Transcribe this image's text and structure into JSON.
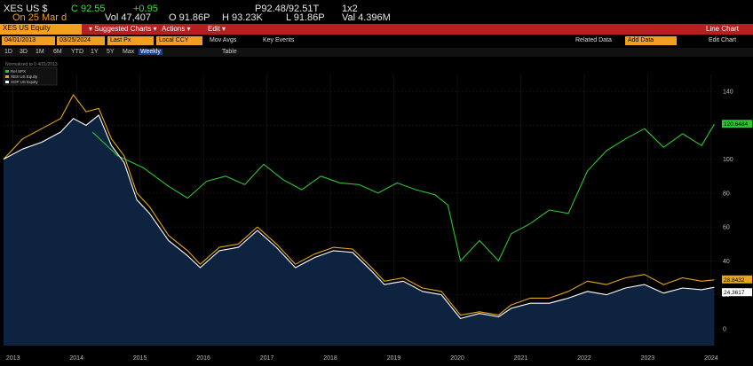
{
  "quote": {
    "ticker": "XES US $",
    "last": "C 92.55",
    "change": "+0.95",
    "bid_ask": "P92.48/92.51T",
    "size": "1x2",
    "date": "On 25 Mar d",
    "volume": "Vol 47,407",
    "open": "O 91.86P",
    "high": "H 93.23K",
    "low": "L 91.86P",
    "value": "Val 4.396M"
  },
  "menubar": {
    "security": "XES US Equity",
    "suggested": "Suggested Charts",
    "actions": "Actions",
    "edit": "Edit",
    "chart_type": "Line Chart"
  },
  "filters": {
    "start_date": "04/01/2013",
    "end_date": "03/25/2024",
    "price": "Last Px",
    "currency": "Local CCY",
    "mov_avgs": "Mov Avgs",
    "key_events": "Key Events",
    "related": "Related Data",
    "add_data": "Add Data",
    "edit_chart": "Edit Chart"
  },
  "periods": [
    "1D",
    "3D",
    "1M",
    "6M",
    "YTD",
    "1Y",
    "5Y",
    "Max",
    "Weekly",
    "Table"
  ],
  "legend_note": "Normalized to 0 4/01/2013",
  "colors": {
    "spx": "#2dc42d",
    "xes": "#e6a817",
    "xop": "#ffffff",
    "area": "#0e2340"
  },
  "chart_data": {
    "type": "line",
    "x_labels": [
      "2013",
      "2014",
      "2015",
      "2016",
      "2017",
      "2018",
      "2019",
      "2020",
      "2021",
      "2022",
      "2023",
      "2024"
    ],
    "ylim": [
      -10,
      150
    ],
    "yticks": [
      0,
      20,
      40,
      60,
      80,
      100,
      120,
      140
    ],
    "series": [
      {
        "name": "Rel SPX",
        "last_label": "120.6484",
        "points": [
          [
            2014.4,
            116
          ],
          [
            2014.8,
            102
          ],
          [
            2015.2,
            95
          ],
          [
            2015.6,
            84
          ],
          [
            2015.9,
            77
          ],
          [
            2016.2,
            87
          ],
          [
            2016.5,
            90
          ],
          [
            2016.8,
            85
          ],
          [
            2017.1,
            97
          ],
          [
            2017.4,
            88
          ],
          [
            2017.7,
            82
          ],
          [
            2018.0,
            90
          ],
          [
            2018.3,
            86
          ],
          [
            2018.6,
            85
          ],
          [
            2018.9,
            80
          ],
          [
            2019.2,
            86
          ],
          [
            2019.5,
            82
          ],
          [
            2019.8,
            79
          ],
          [
            2020.0,
            73
          ],
          [
            2020.2,
            40
          ],
          [
            2020.5,
            52
          ],
          [
            2020.8,
            40
          ],
          [
            2021.0,
            56
          ],
          [
            2021.3,
            62
          ],
          [
            2021.6,
            70
          ],
          [
            2021.9,
            68
          ],
          [
            2022.2,
            93
          ],
          [
            2022.5,
            105
          ],
          [
            2022.8,
            112
          ],
          [
            2023.1,
            118
          ],
          [
            2023.4,
            107
          ],
          [
            2023.7,
            115
          ],
          [
            2024.0,
            108
          ],
          [
            2024.2,
            120.6
          ]
        ]
      },
      {
        "name": "XES US Equity",
        "last_label": "28.8432",
        "points": [
          [
            2013.0,
            100
          ],
          [
            2013.3,
            112
          ],
          [
            2013.6,
            118
          ],
          [
            2013.9,
            124
          ],
          [
            2014.1,
            138
          ],
          [
            2014.3,
            128
          ],
          [
            2014.5,
            130
          ],
          [
            2014.7,
            112
          ],
          [
            2014.9,
            102
          ],
          [
            2015.1,
            80
          ],
          [
            2015.3,
            72
          ],
          [
            2015.6,
            55
          ],
          [
            2015.9,
            46
          ],
          [
            2016.1,
            38
          ],
          [
            2016.4,
            48
          ],
          [
            2016.7,
            50
          ],
          [
            2017.0,
            60
          ],
          [
            2017.3,
            50
          ],
          [
            2017.6,
            38
          ],
          [
            2017.9,
            44
          ],
          [
            2018.2,
            48
          ],
          [
            2018.5,
            47
          ],
          [
            2018.8,
            36
          ],
          [
            2019.0,
            28
          ],
          [
            2019.3,
            30
          ],
          [
            2019.6,
            24
          ],
          [
            2019.9,
            22
          ],
          [
            2020.2,
            8
          ],
          [
            2020.5,
            10
          ],
          [
            2020.8,
            8
          ],
          [
            2021.0,
            14
          ],
          [
            2021.3,
            18
          ],
          [
            2021.6,
            18
          ],
          [
            2021.9,
            22
          ],
          [
            2022.2,
            28
          ],
          [
            2022.5,
            26
          ],
          [
            2022.8,
            30
          ],
          [
            2023.1,
            32
          ],
          [
            2023.4,
            26
          ],
          [
            2023.7,
            30
          ],
          [
            2024.0,
            28
          ],
          [
            2024.2,
            28.8
          ]
        ]
      },
      {
        "name": "XOP US Equity",
        "last_label": "24.3617",
        "points": [
          [
            2013.0,
            100
          ],
          [
            2013.3,
            106
          ],
          [
            2013.6,
            110
          ],
          [
            2013.9,
            116
          ],
          [
            2014.1,
            124
          ],
          [
            2014.3,
            120
          ],
          [
            2014.5,
            126
          ],
          [
            2014.7,
            108
          ],
          [
            2014.9,
            98
          ],
          [
            2015.1,
            76
          ],
          [
            2015.3,
            68
          ],
          [
            2015.6,
            52
          ],
          [
            2015.9,
            43
          ],
          [
            2016.1,
            36
          ],
          [
            2016.4,
            46
          ],
          [
            2016.7,
            48
          ],
          [
            2017.0,
            58
          ],
          [
            2017.3,
            48
          ],
          [
            2017.6,
            36
          ],
          [
            2017.9,
            42
          ],
          [
            2018.2,
            46
          ],
          [
            2018.5,
            45
          ],
          [
            2018.8,
            34
          ],
          [
            2019.0,
            26
          ],
          [
            2019.3,
            28
          ],
          [
            2019.6,
            22
          ],
          [
            2019.9,
            20
          ],
          [
            2020.2,
            6
          ],
          [
            2020.5,
            9
          ],
          [
            2020.8,
            7
          ],
          [
            2021.0,
            12
          ],
          [
            2021.3,
            15
          ],
          [
            2021.6,
            15
          ],
          [
            2021.9,
            18
          ],
          [
            2022.2,
            22
          ],
          [
            2022.5,
            20
          ],
          [
            2022.8,
            24
          ],
          [
            2023.1,
            26
          ],
          [
            2023.4,
            21
          ],
          [
            2023.7,
            24
          ],
          [
            2024.0,
            23
          ],
          [
            2024.2,
            24.4
          ]
        ]
      }
    ]
  }
}
